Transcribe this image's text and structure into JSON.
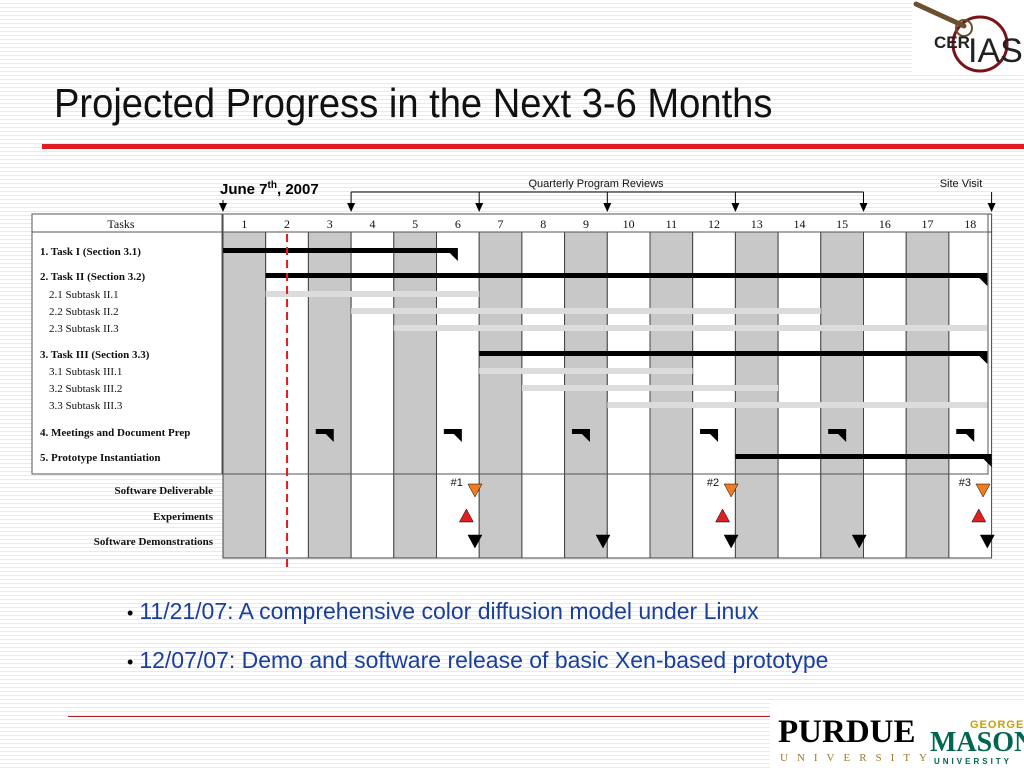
{
  "slide": {
    "title": "Projected Progress in the Next 3-6 Months",
    "title_rule_color": "#e11b22",
    "bullets": [
      "11/21/07: A comprehensive color diffusion model under Linux",
      "12/07/07: Demo and software release of basic Xen-based prototype"
    ],
    "bullet_color": "#1a3f9b"
  },
  "logos": {
    "ceriaS": "CERIAS",
    "ceriaS_first": "CER",
    "ceriaS_last": "IAS",
    "purdue": "PURDUE",
    "purdue_sub": "UNIVERSITY",
    "george": "GEORGE",
    "mason": "MASON",
    "mason_sub": "UNIVERSITY"
  },
  "chart_data": {
    "type": "gantt",
    "months": [
      1,
      2,
      3,
      4,
      5,
      6,
      7,
      8,
      9,
      10,
      11,
      12,
      13,
      14,
      15,
      16,
      17,
      18
    ],
    "table_header": "Tasks",
    "current_date_label": "June 7",
    "current_date_sup": "th",
    "current_date_year": ", 2007",
    "current_month": 2,
    "shaded_months": [
      1,
      3,
      5,
      7,
      9,
      11,
      13,
      15,
      17
    ],
    "top_markers": [
      {
        "month": 1,
        "label": "June 7th, 2007"
      },
      {
        "month": 4,
        "label": "Quarterly Program Reviews"
      },
      {
        "month": 7,
        "label": "Quarterly Program Reviews"
      },
      {
        "month": 10,
        "label": "Quarterly Program Reviews"
      },
      {
        "month": 13,
        "label": "Quarterly Program Reviews"
      },
      {
        "month": 16,
        "label": "Quarterly Program Reviews"
      },
      {
        "month": 19,
        "label": "Site Visit"
      }
    ],
    "review_label": "Quarterly Program Reviews",
    "site_visit_label": "Site Visit",
    "tasks": [
      {
        "name": "1. Task I (Section 3.1)",
        "bold": true,
        "start": 0,
        "end": 5.5,
        "kind": "task"
      },
      {
        "name": "2. Task II (Section 3.2)",
        "bold": true,
        "start": 1,
        "end": 17.9,
        "kind": "task"
      },
      {
        "name": "2.1 Subtask II.1",
        "bold": false,
        "start": 1,
        "end": 6,
        "kind": "subtask"
      },
      {
        "name": "2.2 Subtask II.2",
        "bold": false,
        "start": 3,
        "end": 14,
        "kind": "subtask"
      },
      {
        "name": "2.3 Subtask II.3",
        "bold": false,
        "start": 4,
        "end": 17.9,
        "kind": "subtask"
      },
      {
        "name": "3. Task III (Section 3.3)",
        "bold": true,
        "start": 6,
        "end": 17.9,
        "kind": "task"
      },
      {
        "name": "3.1 Subtask III.1",
        "bold": false,
        "start": 6,
        "end": 11,
        "kind": "subtask"
      },
      {
        "name": "3.2 Subtask III.2",
        "bold": false,
        "start": 7,
        "end": 13,
        "kind": "subtask"
      },
      {
        "name": "3.3 Subtask III.3",
        "bold": false,
        "start": 9,
        "end": 17.9,
        "kind": "subtask"
      },
      {
        "name": "4. Meetings and Document Prep",
        "bold": true,
        "meetings": [
          2.5,
          5.5,
          8.5,
          11.5,
          14.5,
          17.5
        ],
        "kind": "meeting"
      },
      {
        "name": "5. Prototype Instantiation",
        "bold": true,
        "start": 12,
        "end": 18,
        "kind": "task"
      }
    ],
    "milestone_rows": [
      {
        "name": "Software Deliverable",
        "marks": [
          5.9,
          11.9,
          17.8
        ],
        "labels": [
          "#1",
          "#2",
          "#3"
        ],
        "color": "#f07c22",
        "shape": "tri-down"
      },
      {
        "name": "Experiments",
        "marks": [
          5.7,
          11.7,
          17.7
        ],
        "color": "#e02020",
        "shape": "tri-up"
      },
      {
        "name": "Software Demonstrations",
        "marks": [
          5.9,
          8.9,
          11.9,
          14.9,
          17.9
        ],
        "color": "#000000",
        "shape": "tri-down"
      }
    ]
  }
}
